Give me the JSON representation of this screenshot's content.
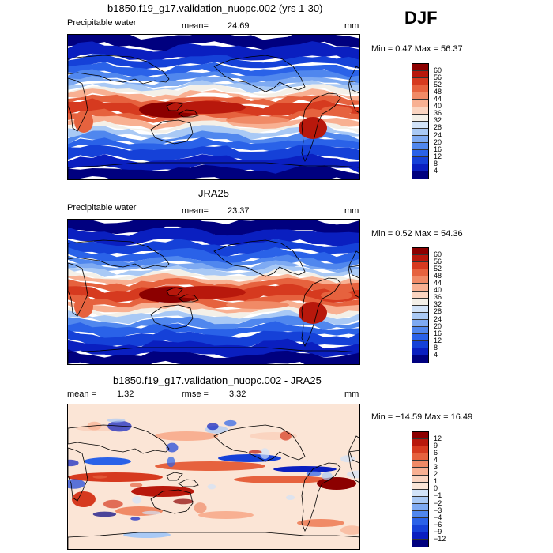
{
  "season": "DJF",
  "panels": [
    {
      "title": "b1850.f19_g17.validation_nuopc.002 (yrs 1-30)",
      "left_label": "Precipitable water",
      "mean_label": "mean=",
      "mean_value": "24.69",
      "units": "mm",
      "minmax": "Min =    0.47 Max =   56.37",
      "colorbar_labels": [
        "60",
        "56",
        "52",
        "48",
        "44",
        "40",
        "36",
        "32",
        "28",
        "24",
        "20",
        "16",
        "12",
        "8",
        "4"
      ]
    },
    {
      "title": "JRA25",
      "left_label": "Precipitable water",
      "mean_label": "mean=",
      "mean_value": "23.37",
      "units": "mm",
      "minmax": "Min =    0.52 Max =   54.36",
      "colorbar_labels": [
        "60",
        "56",
        "52",
        "48",
        "44",
        "40",
        "36",
        "32",
        "28",
        "24",
        "20",
        "16",
        "12",
        "8",
        "4"
      ]
    },
    {
      "title": "b1850.f19_g17.validation_nuopc.002 - JRA25",
      "left_label": "mean =",
      "mean_label": "",
      "mean_value": "1.32",
      "rmse_label": "rmse =",
      "rmse_value": "3.32",
      "units": "mm",
      "minmax": "Min = −14.59 Max =   16.49",
      "colorbar_labels": [
        "12",
        "9",
        "6",
        "4",
        "3",
        "2",
        "1",
        "0",
        "−1",
        "−2",
        "−3",
        "−4",
        "−6",
        "−9",
        "−12"
      ]
    }
  ],
  "colors": {
    "abs_scale": [
      "#00007f",
      "#0a1fc0",
      "#1541d8",
      "#2a62e8",
      "#5087ee",
      "#7eaaf2",
      "#a9c9f5",
      "#d2e3f8",
      "#f4f0e8",
      "#fad4c0",
      "#f8b092",
      "#f08a66",
      "#e6623e",
      "#d63a1f",
      "#b8180c",
      "#8c0000"
    ],
    "diff_scale": [
      "#00007f",
      "#0a1fc0",
      "#1541d8",
      "#2a62e8",
      "#5087ee",
      "#7eaaf2",
      "#a9c9f5",
      "#d2e3f8",
      "#fbe5d6",
      "#fad4c0",
      "#f8b092",
      "#f08a66",
      "#e6623e",
      "#d63a1f",
      "#b8180c",
      "#8c0000"
    ]
  }
}
